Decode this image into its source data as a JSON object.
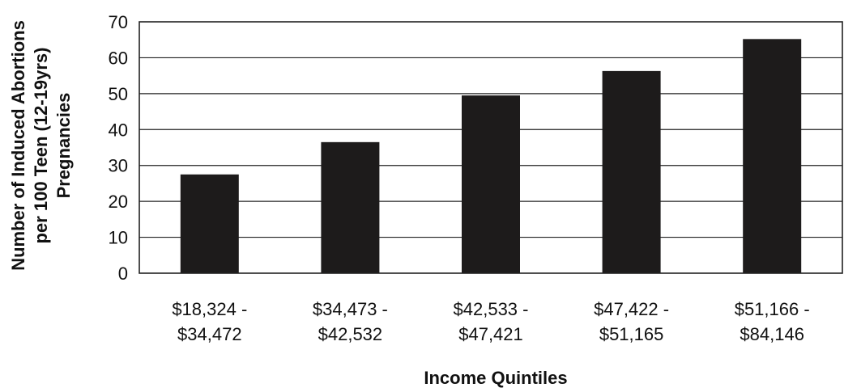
{
  "chart_data": {
    "type": "bar",
    "categories": [
      [
        "$18,324 -",
        "$34,472"
      ],
      [
        "$34,473 -",
        "$42,532"
      ],
      [
        "$42,533 -",
        "$47,421"
      ],
      [
        "$47,422 -",
        "$51,165"
      ],
      [
        "$51,166 -",
        "$84,146"
      ]
    ],
    "values": [
      27.5,
      36.5,
      49.5,
      56.3,
      65.2
    ],
    "xlabel": "Income Quintiles",
    "ylabel": [
      "Number of Induced Abortions",
      "per 100 Teen (12-19yrs)",
      "Pregnancies"
    ],
    "ylim": [
      0,
      70
    ],
    "yticks": [
      0,
      10,
      20,
      30,
      40,
      50,
      60,
      70
    ],
    "grid": true,
    "legend": "none",
    "bar_color": "#1d1b1b"
  }
}
